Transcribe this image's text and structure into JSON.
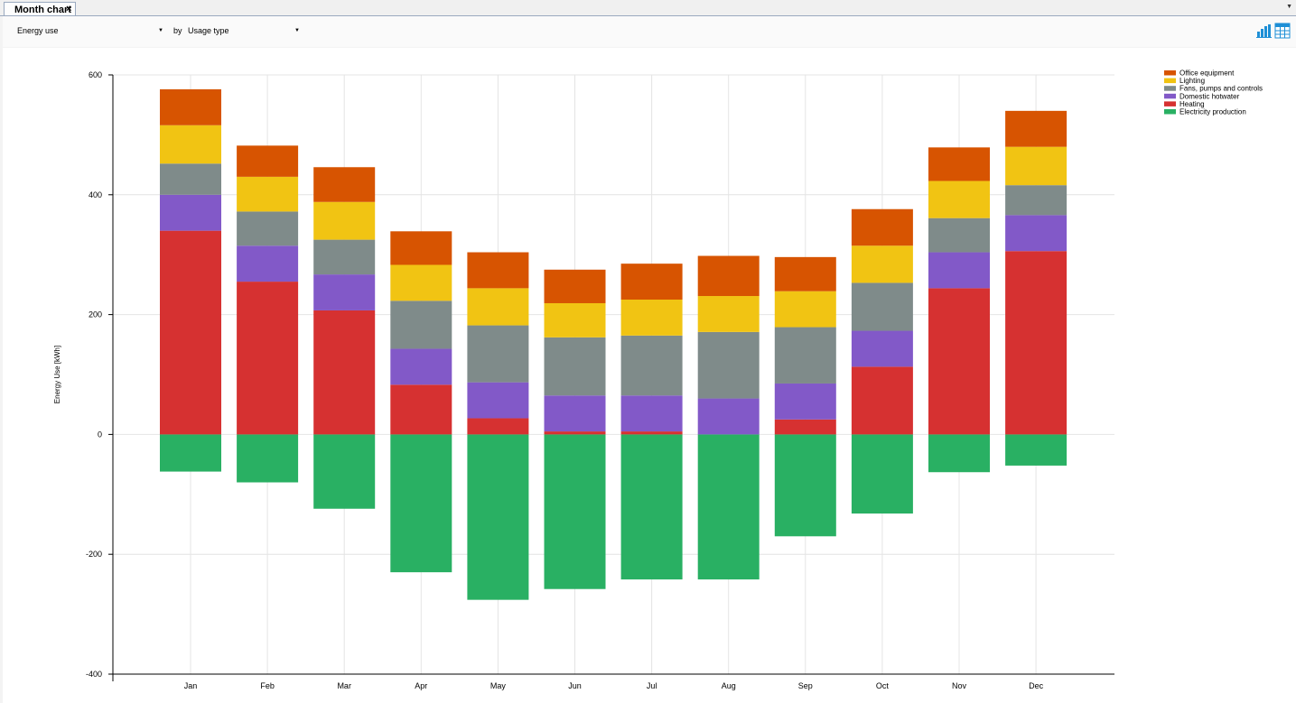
{
  "tab": {
    "title": "Month chart",
    "close": "×"
  },
  "tabs_menu_icon": "chevron-down-icon",
  "toolbar": {
    "metric": "Energy use",
    "by_label": "by",
    "group_by": "Usage type",
    "chart_view_icon": "bar-chart-icon",
    "table_view_icon": "table-icon",
    "accent_color": "#1e8fd6"
  },
  "chart_data": {
    "type": "bar",
    "stacked": true,
    "categories": [
      "Jan",
      "Feb",
      "Mar",
      "Apr",
      "May",
      "Jun",
      "Jul",
      "Aug",
      "Sep",
      "Oct",
      "Nov",
      "Dec"
    ],
    "ylabel": "Energy Use [kWh]",
    "ylim": [
      -400,
      600
    ],
    "yticks": [
      -400,
      -200,
      0,
      200,
      400,
      600
    ],
    "grid": true,
    "legend_position": "top-right",
    "series": [
      {
        "name": "Electricity production",
        "color": "#29b063",
        "values": [
          -62,
          -80,
          -124,
          -230,
          -276,
          -258,
          -242,
          -242,
          -170,
          -132,
          -63,
          -52
        ]
      },
      {
        "name": "Heating",
        "color": "#d63131",
        "values": [
          340,
          255,
          207,
          83,
          27,
          5,
          5,
          0,
          25,
          113,
          244,
          306
        ]
      },
      {
        "name": "Domestic hotwater",
        "color": "#8259c8",
        "values": [
          60,
          60,
          60,
          60,
          60,
          60,
          60,
          60,
          60,
          60,
          60,
          60
        ]
      },
      {
        "name": "Fans, pumps and controls",
        "color": "#7f8b8a",
        "values": [
          52,
          57,
          58,
          80,
          95,
          97,
          100,
          111,
          94,
          80,
          57,
          50
        ]
      },
      {
        "name": "Lighting",
        "color": "#f1c413",
        "values": [
          64,
          58,
          63,
          60,
          62,
          57,
          60,
          60,
          60,
          62,
          62,
          64
        ]
      },
      {
        "name": "Office equipment",
        "color": "#d75401",
        "values": [
          60,
          52,
          58,
          56,
          60,
          56,
          60,
          67,
          57,
          61,
          56,
          60
        ]
      }
    ]
  }
}
